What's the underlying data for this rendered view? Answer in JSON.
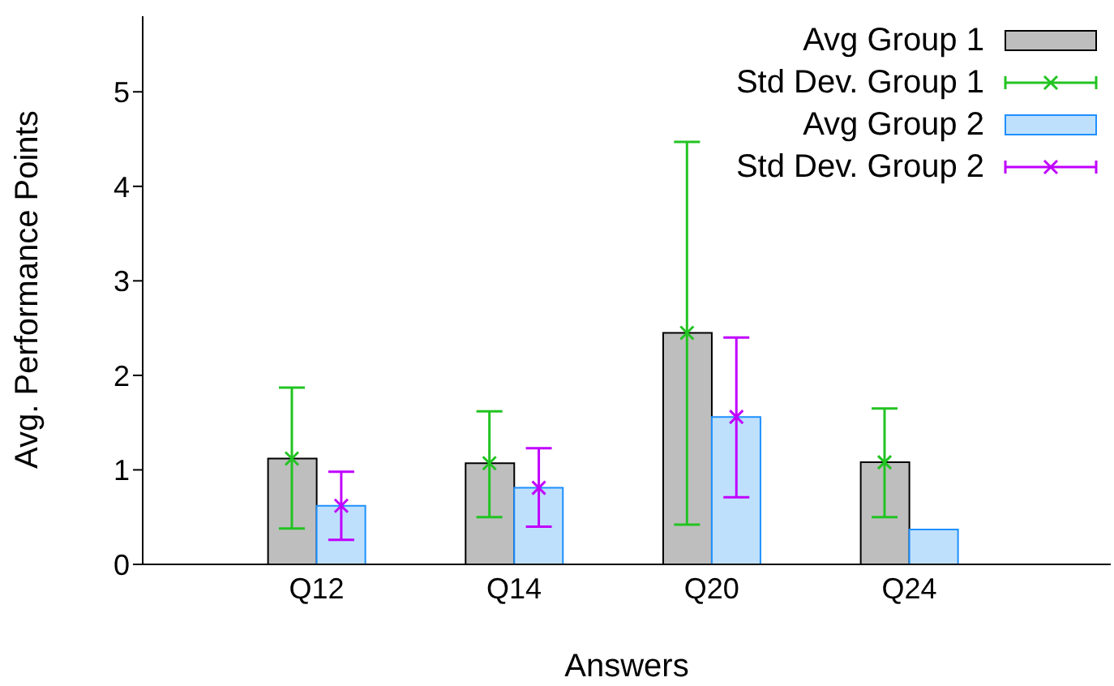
{
  "chart_data": {
    "type": "bar",
    "xlabel": "Answers",
    "ylabel": "Avg. Performance Points",
    "categories": [
      "Q12",
      "Q14",
      "Q20",
      "Q24"
    ],
    "series": [
      {
        "name": "Avg Group 1",
        "type": "bar",
        "color": "#bebebe",
        "values": [
          1.12,
          1.07,
          2.45,
          1.08
        ]
      },
      {
        "name": "Std Dev. Group 1",
        "type": "scatter",
        "marker": "cross",
        "color": "#22c322",
        "values": [
          1.12,
          1.07,
          2.45,
          1.08
        ],
        "errors": [
          [
            0.38,
            1.87
          ],
          [
            0.5,
            1.62
          ],
          [
            0.42,
            4.47
          ],
          [
            0.5,
            1.65
          ]
        ]
      },
      {
        "name": "Avg Group 2",
        "type": "bar",
        "color": "#bfe0fc",
        "values": [
          0.62,
          0.81,
          1.56,
          0.37
        ]
      },
      {
        "name": "Std Dev. Group 2",
        "type": "scatter",
        "marker": "cross",
        "color": "#c000ff",
        "values": [
          0.62,
          0.81,
          1.56,
          null
        ],
        "errors": [
          [
            0.26,
            0.98
          ],
          [
            0.4,
            1.23
          ],
          [
            0.71,
            2.4
          ],
          null
        ]
      }
    ],
    "ylim": [
      0,
      5.8
    ],
    "yticks": [
      0,
      1,
      2,
      3,
      4,
      5
    ],
    "grid": false,
    "legend": "top right"
  }
}
